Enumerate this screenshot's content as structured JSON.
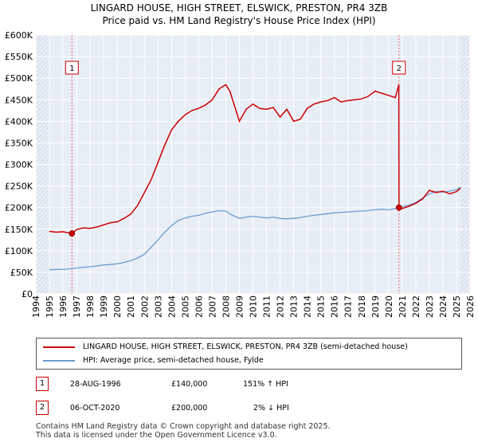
{
  "title_line1": "LINGARD HOUSE, HIGH STREET, ELSWICK, PRESTON, PR4 3ZB",
  "title_line2": "Price paid vs. HM Land Registry's House Price Index (HPI)",
  "colors": {
    "property": "#cc0000",
    "hpi": "#6b9bd1",
    "grid": "#cccccc",
    "plot_bg": "#e8eef6",
    "shade": "#dde5ef"
  },
  "chart_data": {
    "type": "line",
    "xlim": [
      1994,
      2026
    ],
    "ylim": [
      0,
      600000
    ],
    "x_ticks": [
      1994,
      1995,
      1996,
      1997,
      1998,
      1999,
      2000,
      2001,
      2002,
      2003,
      2004,
      2005,
      2006,
      2007,
      2008,
      2009,
      2010,
      2011,
      2012,
      2013,
      2014,
      2015,
      2016,
      2017,
      2018,
      2019,
      2020,
      2021,
      2022,
      2023,
      2024,
      2025,
      2026
    ],
    "y_ticks": [
      0,
      50000,
      100000,
      150000,
      200000,
      250000,
      300000,
      350000,
      400000,
      450000,
      500000,
      550000,
      600000
    ],
    "y_tick_labels": [
      "£0",
      "£50K",
      "£100K",
      "£150K",
      "£200K",
      "£250K",
      "£300K",
      "£350K",
      "£400K",
      "£450K",
      "£500K",
      "£550K",
      "£600K"
    ],
    "series": [
      {
        "name": "LINGARD HOUSE, HIGH STREET, ELSWICK, PRESTON, PR4 3ZB (semi-detached house)",
        "color": "#cc0000",
        "x": [
          1995.0,
          1995.5,
          1996.0,
          1996.66,
          1997.0,
          1997.5,
          1998.0,
          1998.5,
          1999.0,
          1999.5,
          2000.0,
          2000.5,
          2001.0,
          2001.5,
          2002.0,
          2002.5,
          2003.0,
          2003.5,
          2004.0,
          2004.5,
          2005.0,
          2005.5,
          2006.0,
          2006.5,
          2007.0,
          2007.5,
          2008.0,
          2008.3,
          2008.7,
          2009.0,
          2009.5,
          2010.0,
          2010.5,
          2011.0,
          2011.5,
          2012.0,
          2012.5,
          2013.0,
          2013.5,
          2014.0,
          2014.5,
          2015.0,
          2015.5,
          2016.0,
          2016.5,
          2017.0,
          2017.5,
          2018.0,
          2018.5,
          2019.0,
          2019.5,
          2020.0,
          2020.5,
          2020.75,
          2020.76,
          2021.0,
          2021.5,
          2022.0,
          2022.5,
          2023.0,
          2023.5,
          2024.0,
          2024.5,
          2025.0,
          2025.3
        ],
        "values": [
          145000,
          143000,
          144000,
          140000,
          149000,
          153000,
          152000,
          155000,
          160000,
          165000,
          167000,
          175000,
          185000,
          205000,
          235000,
          265000,
          305000,
          345000,
          380000,
          400000,
          415000,
          425000,
          430000,
          438000,
          450000,
          475000,
          485000,
          470000,
          430000,
          400000,
          428000,
          440000,
          430000,
          428000,
          432000,
          410000,
          428000,
          400000,
          405000,
          430000,
          440000,
          445000,
          448000,
          455000,
          445000,
          448000,
          450000,
          452000,
          458000,
          470000,
          465000,
          460000,
          455000,
          485000,
          200000,
          198000,
          203000,
          210000,
          220000,
          240000,
          235000,
          238000,
          232000,
          237000,
          245000
        ]
      },
      {
        "name": "HPI: Average price, semi-detached house, Fylde",
        "color": "#6b9bd1",
        "x": [
          1995.0,
          1995.5,
          1996.0,
          1996.5,
          1997.0,
          1997.5,
          1998.0,
          1998.5,
          1999.0,
          1999.5,
          2000.0,
          2000.5,
          2001.0,
          2001.5,
          2002.0,
          2002.5,
          2003.0,
          2003.5,
          2004.0,
          2004.5,
          2005.0,
          2005.5,
          2006.0,
          2006.5,
          2007.0,
          2007.5,
          2008.0,
          2008.5,
          2009.0,
          2009.5,
          2010.0,
          2010.5,
          2011.0,
          2011.5,
          2012.0,
          2012.5,
          2013.0,
          2013.5,
          2014.0,
          2014.5,
          2015.0,
          2015.5,
          2016.0,
          2016.5,
          2017.0,
          2017.5,
          2018.0,
          2018.5,
          2019.0,
          2019.5,
          2020.0,
          2020.5,
          2021.0,
          2021.5,
          2022.0,
          2022.5,
          2023.0,
          2023.5,
          2024.0,
          2024.5,
          2025.0,
          2025.3
        ],
        "values": [
          56000,
          56500,
          57000,
          58000,
          60000,
          61500,
          63000,
          65000,
          67000,
          68000,
          70000,
          73000,
          77000,
          83000,
          92000,
          108000,
          125000,
          143000,
          158000,
          170000,
          176000,
          180000,
          182000,
          187000,
          190000,
          193000,
          192000,
          182000,
          175000,
          178000,
          180000,
          178000,
          176000,
          178000,
          175000,
          174000,
          175000,
          177000,
          180000,
          182000,
          184000,
          186000,
          188000,
          189000,
          190000,
          191000,
          192000,
          193000,
          195000,
          196000,
          195000,
          198000,
          202000,
          206000,
          212000,
          222000,
          232000,
          237000,
          236000,
          238000,
          242000,
          248000
        ]
      }
    ],
    "annotations": [
      {
        "id": "1",
        "x": 1996.66,
        "y": 140000
      },
      {
        "id": "2",
        "x": 2020.76,
        "y": 200000
      }
    ],
    "hatched_before": 1995.0,
    "hatched_after": 2025.3
  },
  "legend": {
    "property_label": "LINGARD HOUSE, HIGH STREET, ELSWICK, PRESTON, PR4 3ZB (semi-detached house)",
    "hpi_label": "HPI: Average price, semi-detached house, Fylde"
  },
  "transactions": [
    {
      "id": "1",
      "date": "28-AUG-1996",
      "price": "£140,000",
      "hpi": "151% ↑ HPI"
    },
    {
      "id": "2",
      "date": "06-OCT-2020",
      "price": "£200,000",
      "hpi": "2% ↓ HPI"
    }
  ],
  "footer_line1": "Contains HM Land Registry data © Crown copyright and database right 2025.",
  "footer_line2": "This data is licensed under the Open Government Licence v3.0."
}
